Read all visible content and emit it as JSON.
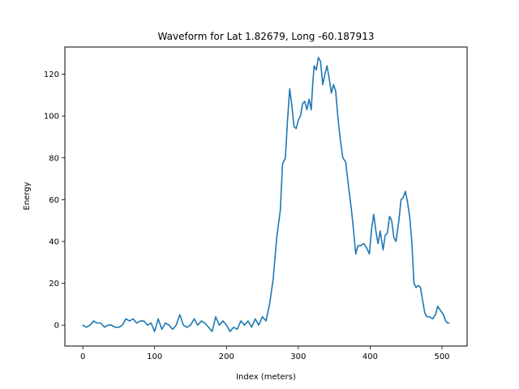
{
  "chart_data": {
    "type": "line",
    "title": "Waveform for Lat 1.82679, Long -60.187913",
    "xlabel": "Index (meters)",
    "ylabel": "Energy",
    "xlim": [
      -25,
      535
    ],
    "ylim": [
      -10,
      133
    ],
    "xticks": [
      0,
      100,
      200,
      300,
      400,
      500
    ],
    "yticks": [
      0,
      20,
      40,
      60,
      80,
      100,
      120
    ],
    "grid": false,
    "series": [
      {
        "color": "#1f77b4",
        "points": [
          [
            0,
            0
          ],
          [
            5,
            -1
          ],
          [
            10,
            0
          ],
          [
            15,
            2
          ],
          [
            20,
            1
          ],
          [
            25,
            1
          ],
          [
            30,
            -1
          ],
          [
            35,
            0
          ],
          [
            40,
            0
          ],
          [
            45,
            -1
          ],
          [
            50,
            -1
          ],
          [
            55,
            0
          ],
          [
            60,
            3
          ],
          [
            65,
            2
          ],
          [
            70,
            3
          ],
          [
            75,
            1
          ],
          [
            80,
            2
          ],
          [
            85,
            2
          ],
          [
            90,
            0
          ],
          [
            95,
            1
          ],
          [
            100,
            -3
          ],
          [
            105,
            3
          ],
          [
            110,
            -2
          ],
          [
            115,
            1
          ],
          [
            120,
            0
          ],
          [
            125,
            -2
          ],
          [
            130,
            0
          ],
          [
            135,
            5
          ],
          [
            140,
            0
          ],
          [
            145,
            -1
          ],
          [
            150,
            0
          ],
          [
            155,
            3
          ],
          [
            160,
            0
          ],
          [
            165,
            2
          ],
          [
            170,
            1
          ],
          [
            175,
            -1
          ],
          [
            180,
            -3
          ],
          [
            185,
            4
          ],
          [
            190,
            0
          ],
          [
            195,
            2
          ],
          [
            200,
            0
          ],
          [
            205,
            -3
          ],
          [
            210,
            -1
          ],
          [
            215,
            -2
          ],
          [
            220,
            2
          ],
          [
            225,
            0
          ],
          [
            230,
            2
          ],
          [
            235,
            -1
          ],
          [
            240,
            3
          ],
          [
            245,
            0
          ],
          [
            250,
            4
          ],
          [
            255,
            2
          ],
          [
            260,
            10
          ],
          [
            265,
            22
          ],
          [
            270,
            42
          ],
          [
            275,
            55
          ],
          [
            278,
            77
          ],
          [
            282,
            80
          ],
          [
            285,
            98
          ],
          [
            288,
            113
          ],
          [
            291,
            105
          ],
          [
            294,
            95
          ],
          [
            297,
            94
          ],
          [
            300,
            98
          ],
          [
            303,
            100
          ],
          [
            306,
            106
          ],
          [
            309,
            107
          ],
          [
            312,
            103
          ],
          [
            315,
            108
          ],
          [
            318,
            103
          ],
          [
            320,
            115
          ],
          [
            322,
            124
          ],
          [
            325,
            122
          ],
          [
            328,
            128
          ],
          [
            331,
            126
          ],
          [
            334,
            115
          ],
          [
            337,
            120
          ],
          [
            340,
            124
          ],
          [
            343,
            118
          ],
          [
            346,
            111
          ],
          [
            349,
            115
          ],
          [
            352,
            112
          ],
          [
            355,
            100
          ],
          [
            358,
            90
          ],
          [
            362,
            80
          ],
          [
            366,
            78
          ],
          [
            370,
            66
          ],
          [
            374,
            55
          ],
          [
            377,
            45
          ],
          [
            380,
            34
          ],
          [
            383,
            38
          ],
          [
            387,
            38
          ],
          [
            391,
            39
          ],
          [
            395,
            37
          ],
          [
            399,
            34
          ],
          [
            402,
            46
          ],
          [
            405,
            53
          ],
          [
            408,
            45
          ],
          [
            411,
            39
          ],
          [
            414,
            45
          ],
          [
            418,
            36
          ],
          [
            421,
            43
          ],
          [
            424,
            44
          ],
          [
            427,
            52
          ],
          [
            430,
            50
          ],
          [
            433,
            42
          ],
          [
            436,
            40
          ],
          [
            440,
            50
          ],
          [
            443,
            60
          ],
          [
            446,
            61
          ],
          [
            449,
            64
          ],
          [
            452,
            59
          ],
          [
            455,
            52
          ],
          [
            458,
            40
          ],
          [
            461,
            20
          ],
          [
            464,
            18
          ],
          [
            467,
            19
          ],
          [
            470,
            18
          ],
          [
            473,
            12
          ],
          [
            476,
            6
          ],
          [
            479,
            4
          ],
          [
            483,
            4
          ],
          [
            487,
            3
          ],
          [
            491,
            5
          ],
          [
            494,
            9
          ],
          [
            498,
            7
          ],
          [
            502,
            5
          ],
          [
            505,
            2
          ],
          [
            508,
            1
          ],
          [
            510,
            1
          ]
        ]
      }
    ]
  }
}
